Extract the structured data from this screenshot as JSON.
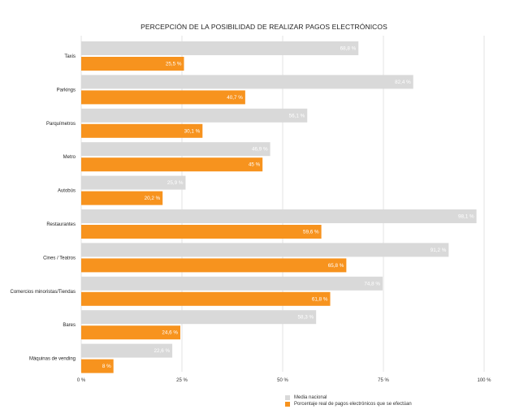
{
  "chart_data": {
    "type": "bar",
    "orientation": "horizontal",
    "title": "PERCEPCIÓN DE LA POSIBILIDAD DE REALIZAR PAGOS ELECTRÓNICOS",
    "categories": [
      "Taxis",
      "Parkings",
      "Parquímetros",
      "Metro",
      "Autobús",
      "Restaurantes",
      "Cines / Teatros",
      "Comercios minoristas/Tiendas",
      "Bares",
      "Máquinas de vending"
    ],
    "series": [
      {
        "name": "Media nacional",
        "color": "#d9d9d9",
        "values": [
          68.8,
          82.4,
          56.1,
          46.9,
          25.9,
          98.1,
          91.2,
          74.8,
          58.3,
          22.6
        ],
        "labels": [
          "68,8 %",
          "82,4 %",
          "56,1 %",
          "46,9 %",
          "25,9 %",
          "98,1 %",
          "91,2 %",
          "74,8 %",
          "58,3 %",
          "22,6 %"
        ]
      },
      {
        "name": "Porcentaje real de pagos electrónicos que se efectúan",
        "color": "#f7931e",
        "values": [
          25.5,
          40.7,
          30.1,
          45,
          20.2,
          59.6,
          65.8,
          61.8,
          24.6,
          8
        ],
        "labels": [
          "25,5 %",
          "40,7 %",
          "30,1 %",
          "45 %",
          "20,2 %",
          "59,6 %",
          "65,8 %",
          "61,8 %",
          "24,6 %",
          "8 %"
        ]
      }
    ],
    "xlim": [
      0,
      100
    ],
    "xticks": [
      0,
      25,
      50,
      75,
      100
    ],
    "xtick_labels": [
      "0 %",
      "25 %",
      "50 %",
      "75 %",
      "100 %"
    ],
    "grid": true,
    "legend_position": "bottom"
  }
}
